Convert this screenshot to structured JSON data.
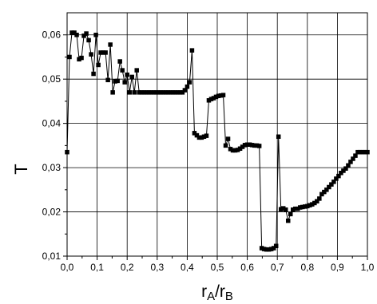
{
  "chart_data": {
    "type": "line",
    "title": "",
    "ylabel": "T",
    "xlabel_main": "r",
    "xlabel_sub1": "A",
    "xlabel_sep": "/r",
    "xlabel_sub2": "B",
    "xlim": [
      0.0,
      1.0
    ],
    "ylim": [
      0.01,
      0.065
    ],
    "x_ticks": [
      0.0,
      0.1,
      0.2,
      0.3,
      0.4,
      0.5,
      0.6,
      0.7,
      0.8,
      0.9,
      1.0
    ],
    "x_tick_labels": [
      "0,0",
      "0,1",
      "0,2",
      "0,3",
      "0,4",
      "0,5",
      "0,6",
      "0,7",
      "0,8",
      "0,9",
      "1,0"
    ],
    "y_ticks": [
      0.01,
      0.02,
      0.03,
      0.04,
      0.05,
      0.06
    ],
    "y_tick_labels": [
      "0,01",
      "0,02",
      "0,03",
      "0,04",
      "0,05",
      "0,06"
    ],
    "grid": true,
    "legend": "none",
    "line_color": "#000000",
    "marker": "square",
    "series": [
      {
        "x": [
          0.0,
          0.008,
          0.016,
          0.024,
          0.032,
          0.04,
          0.048,
          0.056,
          0.064,
          0.072,
          0.08,
          0.088,
          0.096,
          0.104,
          0.112,
          0.12,
          0.128,
          0.136,
          0.144,
          0.152,
          0.16,
          0.168,
          0.176,
          0.184,
          0.192,
          0.2,
          0.208,
          0.216,
          0.224,
          0.232,
          0.24,
          0.248,
          0.256,
          0.264,
          0.272,
          0.28,
          0.288,
          0.296,
          0.304,
          0.312,
          0.32,
          0.328,
          0.336,
          0.344,
          0.352,
          0.36,
          0.368,
          0.376,
          0.384,
          0.392,
          0.4,
          0.408,
          0.416,
          0.424,
          0.432,
          0.44,
          0.448,
          0.456,
          0.464,
          0.472,
          0.48,
          0.488,
          0.496,
          0.504,
          0.512,
          0.52,
          0.528,
          0.536,
          0.544,
          0.552,
          0.56,
          0.568,
          0.576,
          0.584,
          0.592,
          0.6,
          0.608,
          0.616,
          0.624,
          0.632,
          0.64,
          0.648,
          0.656,
          0.664,
          0.672,
          0.68,
          0.688,
          0.696,
          0.704,
          0.712,
          0.72,
          0.728,
          0.736,
          0.744,
          0.752,
          0.76,
          0.768,
          0.776,
          0.784,
          0.792,
          0.8,
          0.808,
          0.816,
          0.824,
          0.832,
          0.84,
          0.848,
          0.856,
          0.864,
          0.872,
          0.88,
          0.888,
          0.896,
          0.904,
          0.912,
          0.92,
          0.928,
          0.936,
          0.944,
          0.952,
          0.96,
          0.968,
          0.976,
          0.984,
          0.992,
          1.0
        ],
        "y": [
          0.0335,
          0.055,
          0.0605,
          0.0605,
          0.06,
          0.0545,
          0.0548,
          0.0598,
          0.0603,
          0.0588,
          0.0556,
          0.0512,
          0.06,
          0.0532,
          0.056,
          0.056,
          0.056,
          0.0498,
          0.0578,
          0.047,
          0.0495,
          0.0496,
          0.054,
          0.052,
          0.0493,
          0.051,
          0.047,
          0.0505,
          0.047,
          0.052,
          0.047,
          0.047,
          0.047,
          0.047,
          0.047,
          0.047,
          0.047,
          0.047,
          0.047,
          0.047,
          0.047,
          0.047,
          0.047,
          0.047,
          0.047,
          0.047,
          0.047,
          0.047,
          0.047,
          0.0475,
          0.0483,
          0.0493,
          0.0565,
          0.0378,
          0.0373,
          0.0368,
          0.0368,
          0.037,
          0.0372,
          0.0452,
          0.0455,
          0.0457,
          0.046,
          0.0462,
          0.0463,
          0.0464,
          0.035,
          0.0365,
          0.0342,
          0.0339,
          0.0339,
          0.034,
          0.0343,
          0.0347,
          0.0351,
          0.0352,
          0.0352,
          0.0351,
          0.035,
          0.035,
          0.0349,
          0.0118,
          0.0116,
          0.0115,
          0.0115,
          0.0116,
          0.0118,
          0.0123,
          0.037,
          0.0206,
          0.0208,
          0.0205,
          0.018,
          0.0195,
          0.0205,
          0.0207,
          0.0207,
          0.021,
          0.0211,
          0.0212,
          0.0213,
          0.0215,
          0.0217,
          0.022,
          0.0224,
          0.023,
          0.024,
          0.0245,
          0.025,
          0.0256,
          0.0262,
          0.0268,
          0.0275,
          0.0281,
          0.0288,
          0.0293,
          0.0298,
          0.0305,
          0.0313,
          0.032,
          0.0327,
          0.0335,
          0.0335,
          0.0335,
          0.0335,
          0.0335
        ]
      }
    ]
  }
}
